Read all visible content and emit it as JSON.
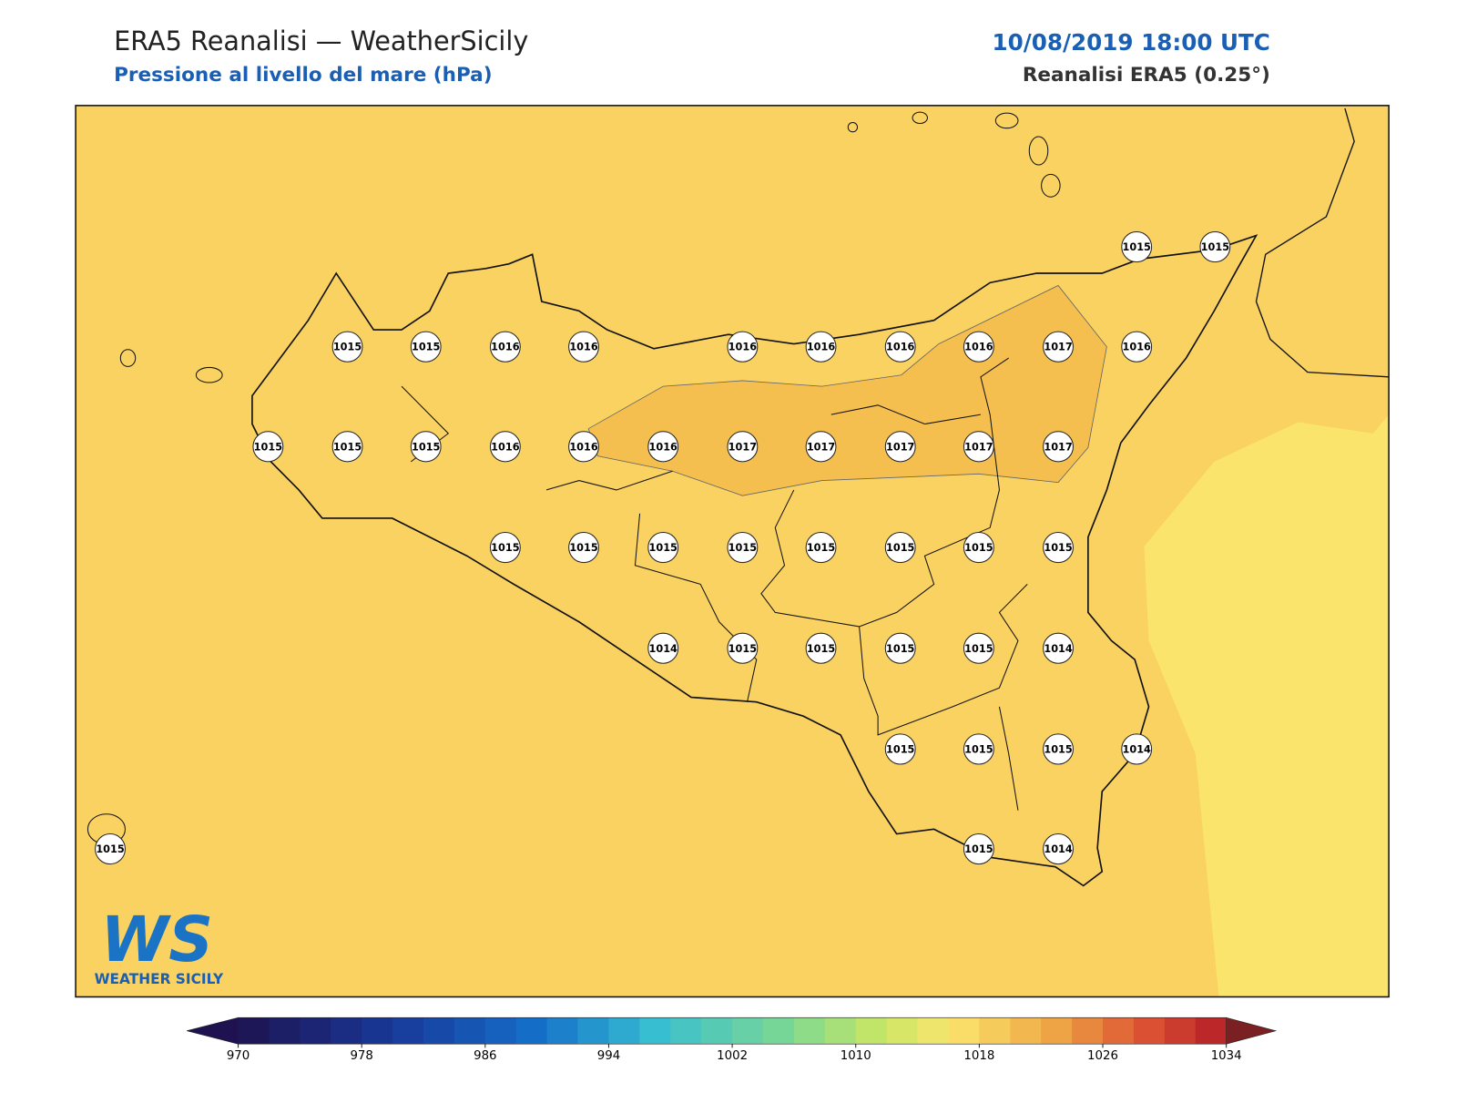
{
  "header": {
    "title": "ERA5 Reanalisi — WeatherSicily",
    "subtitle": "Pressione al livello del mare (hPa)",
    "date": "10/08/2019 18:00 UTC",
    "source": "Reanalisi ERA5 (0.25°)"
  },
  "stations": [
    1015,
    1015,
    1015,
    1015,
    1016,
    1016,
    1016,
    1016,
    1016,
    1016,
    1017,
    1016,
    1015,
    1015,
    1015,
    1016,
    1016,
    1016,
    1017,
    1017,
    1017,
    1017,
    1017,
    1015,
    1015,
    1015,
    1015,
    1015,
    1015,
    1015,
    1015,
    1014,
    1015,
    1015,
    1015,
    1015,
    1014,
    1015,
    1015,
    1015,
    1014,
    1015,
    1015,
    1014
  ],
  "colorbar": {
    "ticks": [
      970,
      978,
      986,
      994,
      1002,
      1010,
      1018,
      1026,
      1034
    ]
  },
  "logo": {
    "mark": "WS",
    "text": "WEATHER SICILY"
  }
}
